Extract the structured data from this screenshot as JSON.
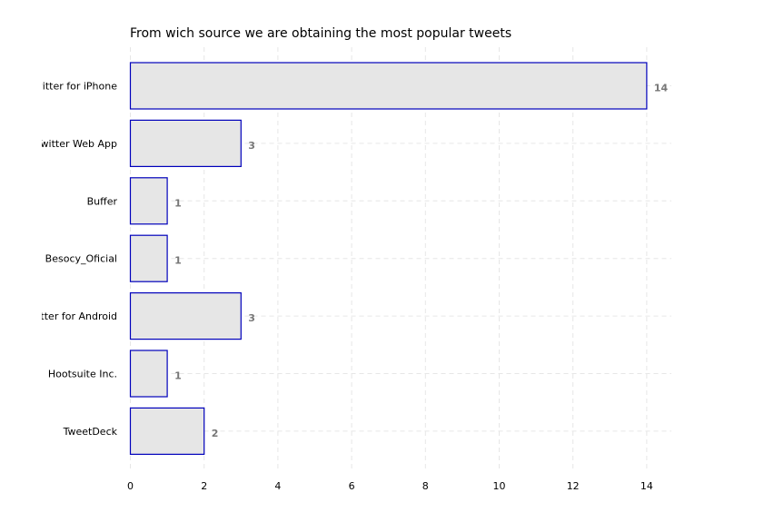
{
  "chart_data": {
    "type": "bar",
    "orientation": "horizontal",
    "title": "From wich source we are obtaining the most popular tweets",
    "categories": [
      "Twitter for iPhone",
      "Twitter Web App",
      "Buffer",
      "Besocy_Oficial",
      "Twitter for Android",
      "Hootsuite Inc.",
      "TweetDeck"
    ],
    "values": [
      14,
      3,
      1,
      1,
      3,
      1,
      2
    ],
    "xlabel": "",
    "ylabel": "",
    "xlim": [
      0,
      14.7
    ],
    "xticks": [
      0,
      2,
      4,
      6,
      8,
      10,
      12,
      14
    ],
    "grid": true,
    "data_labels": true,
    "colors": {
      "bar_fill": "#e6e6e6",
      "bar_edge": "#0000bb",
      "value_label": "#777777",
      "grid": "#e6e6e6"
    }
  }
}
